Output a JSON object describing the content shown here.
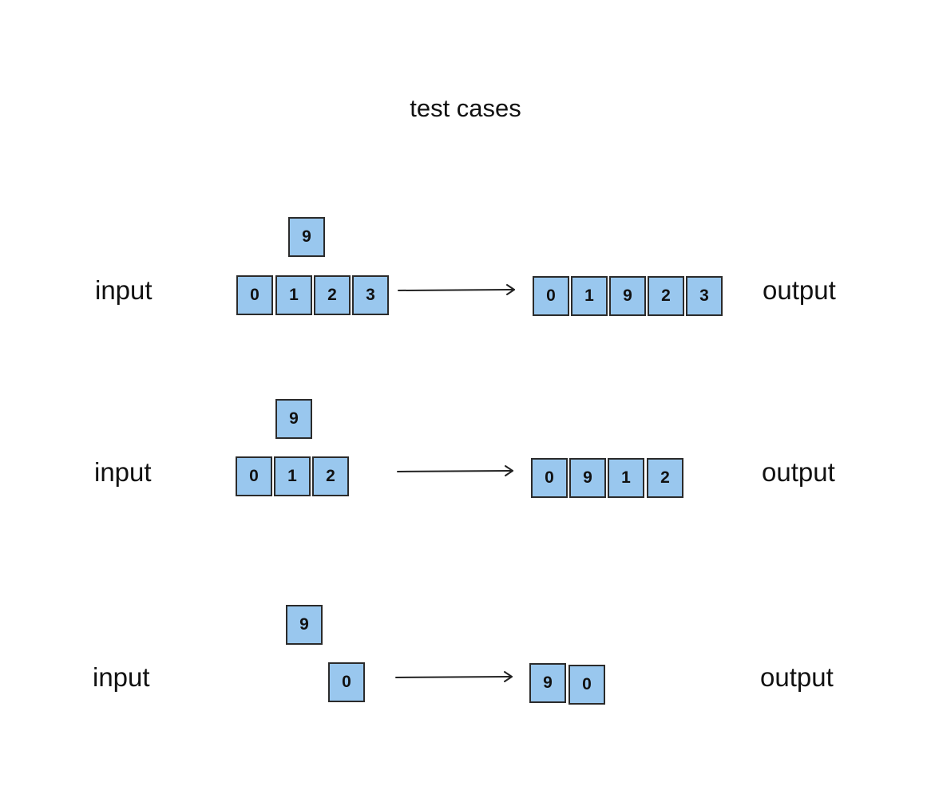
{
  "diagram": {
    "title": "test cases",
    "input_label": "input",
    "output_label": "output",
    "colors": {
      "cell_fill": "#99c7ee",
      "cell_border": "#2b2b2b",
      "arrow": "#222222"
    },
    "cases": [
      {
        "insert_value": "9",
        "input_cells": [
          "0",
          "1",
          "2",
          "3"
        ],
        "output_cells": [
          "0",
          "1",
          "9",
          "2",
          "3"
        ]
      },
      {
        "insert_value": "9",
        "input_cells": [
          "0",
          "1",
          "2"
        ],
        "output_cells": [
          "0",
          "9",
          "1",
          "2"
        ]
      },
      {
        "insert_value": "9",
        "input_cells": [
          "0"
        ],
        "output_cells": [
          "9",
          "0"
        ]
      }
    ]
  }
}
